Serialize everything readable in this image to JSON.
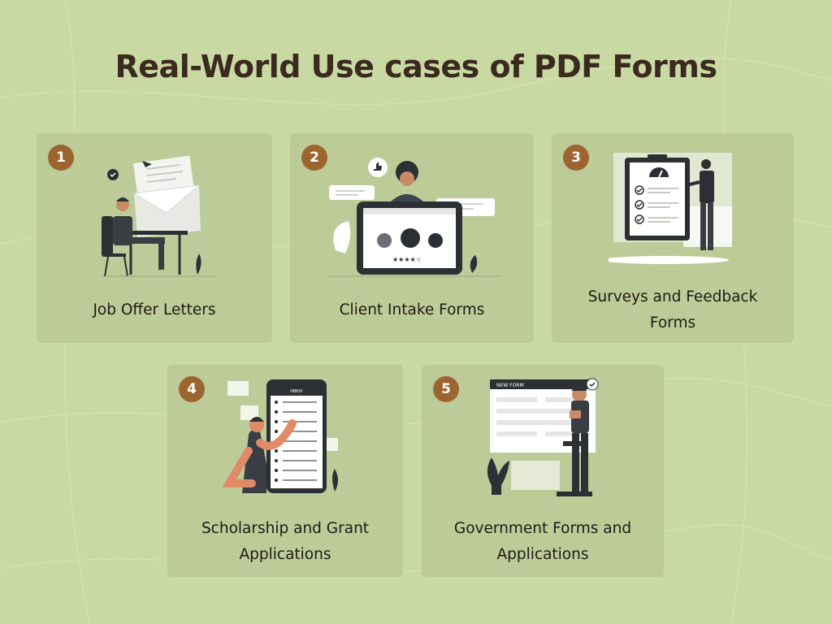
{
  "page": {
    "title": "Real-World Use cases of PDF Forms",
    "colors": {
      "background": "#c9d9a3",
      "card": "#bccb98",
      "badge": "#9c6530",
      "title": "#3b2a1e"
    }
  },
  "cards": [
    {
      "number": "1",
      "label": "Job Offer Letters",
      "illustration": "person-at-desk-with-envelope"
    },
    {
      "number": "2",
      "label": "Client Intake Forms",
      "illustration": "person-with-tablet-rating"
    },
    {
      "number": "3",
      "label_lines": [
        "Surveys and Feedback",
        "Forms"
      ],
      "illustration": "person-with-checklist-clipboard"
    },
    {
      "number": "4",
      "label_lines": [
        "Scholarship and Grant",
        "Applications"
      ],
      "illustration": "person-with-phone-inbox",
      "phone_header": "INBOX"
    },
    {
      "number": "5",
      "label_lines": [
        "Government Forms and",
        "Applications"
      ],
      "illustration": "person-with-new-form",
      "form_header": "NEW FORM"
    }
  ]
}
